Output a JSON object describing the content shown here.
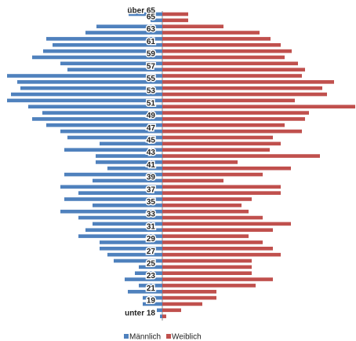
{
  "chart_data": {
    "type": "pyramid",
    "categories": [
      "über 65",
      "65",
      null,
      "63",
      null,
      "61",
      null,
      "59",
      null,
      "57",
      null,
      "55",
      null,
      "53",
      null,
      "51",
      null,
      "49",
      null,
      "47",
      null,
      "45",
      null,
      "43",
      null,
      "41",
      null,
      "39",
      null,
      "37",
      null,
      "35",
      null,
      "33",
      null,
      "31",
      null,
      "29",
      null,
      "27",
      null,
      "25",
      null,
      "23",
      null,
      "21",
      null,
      "19",
      null,
      "unter 18"
    ],
    "series": [
      {
        "name": "Männlich",
        "color": "#4f81bd",
        "values": [
          43,
          15,
          84,
          98,
          148,
          140,
          152,
          166,
          130,
          121,
          198,
          185,
          181,
          193,
          198,
          171,
          153,
          166,
          148,
          130,
          121,
          80,
          125,
          85,
          85,
          70,
          125,
          89,
          130,
          107,
          125,
          89,
          130,
          107,
          89,
          98,
          107,
          80,
          80,
          70,
          62,
          30,
          35,
          48,
          30,
          44,
          25,
          25,
          7,
          3
        ]
      },
      {
        "name": "Weiblich",
        "color": "#c0504d",
        "values": [
          33,
          33,
          78,
          124,
          138,
          151,
          165,
          156,
          173,
          182,
          178,
          219,
          204,
          210,
          169,
          246,
          187,
          182,
          156,
          178,
          141,
          151,
          137,
          201,
          96,
          164,
          128,
          78,
          151,
          151,
          114,
          101,
          110,
          128,
          164,
          141,
          110,
          128,
          141,
          151,
          114,
          114,
          114,
          141,
          119,
          69,
          69,
          51,
          24,
          5
        ]
      }
    ],
    "xlim": [
      0,
      250
    ]
  }
}
